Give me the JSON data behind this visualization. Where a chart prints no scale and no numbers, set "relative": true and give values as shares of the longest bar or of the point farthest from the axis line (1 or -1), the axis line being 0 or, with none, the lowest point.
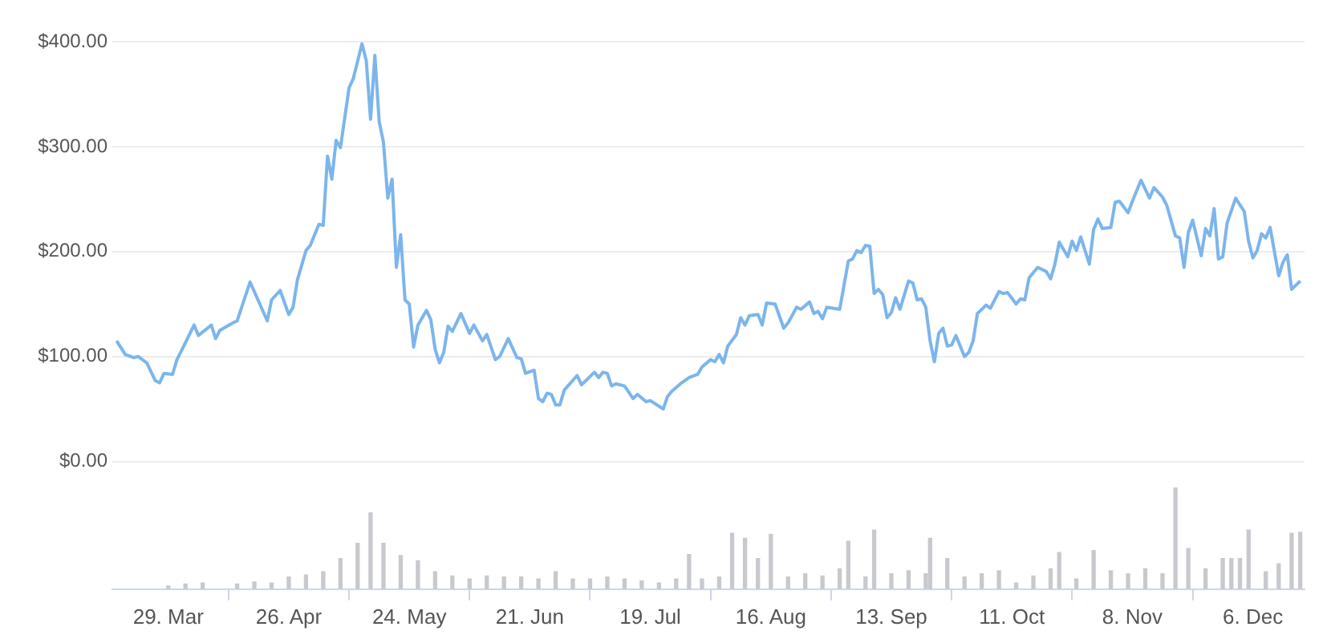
{
  "chart_data": [
    {
      "type": "line",
      "color": "#7cb5ec",
      "grid": "y",
      "tick_labels": "y",
      "xlim": [
        "--03-16",
        "--12-18"
      ],
      "ylim": [
        0,
        400
      ],
      "yticks": [
        {
          "value": 0,
          "label": "$0.00"
        },
        {
          "value": 100,
          "label": "$100.00"
        },
        {
          "value": 200,
          "label": "$200.00"
        },
        {
          "value": 300,
          "label": "$300.00"
        },
        {
          "value": 400,
          "label": "$400.00"
        }
      ],
      "x": [
        "--03-17",
        "--03-19",
        "--03-21",
        "--03-22",
        "--03-24",
        "--03-26",
        "--03-27",
        "--03-28",
        "--03-30",
        "--03-31",
        "--04-01",
        "--04-04",
        "--04-05",
        "--04-08",
        "--04-09",
        "--04-10",
        "--04-13",
        "--04-14",
        "--04-17",
        "--04-21",
        "--04-22",
        "--04-24",
        "--04-26",
        "--04-27",
        "--04-28",
        "--04-30",
        "--05-01",
        "--05-03",
        "--05-04",
        "--05-05",
        "--05-06",
        "--05-07",
        "--05-08",
        "--05-10",
        "--05-11",
        "--05-13",
        "--05-14",
        "--05-15",
        "--05-16",
        "--05-17",
        "--05-18",
        "--05-19",
        "--05-20",
        "--05-21",
        "--05-22",
        "--05-23",
        "--05-24",
        "--05-25",
        "--05-26",
        "--05-28",
        "--05-29",
        "--05-30",
        "--05-31",
        "--06-01",
        "--06-02",
        "--06-03",
        "--06-05",
        "--06-07",
        "--06-08",
        "--06-10",
        "--06-11",
        "--06-13",
        "--06-14",
        "--06-16",
        "--06-18",
        "--06-19",
        "--06-20",
        "--06-22",
        "--06-23",
        "--06-24",
        "--06-25",
        "--06-26",
        "--06-27",
        "--06-28",
        "--06-29",
        "--07-02",
        "--07-03",
        "--07-04",
        "--07-06",
        "--07-07",
        "--07-08",
        "--07-09",
        "--07-10",
        "--07-11",
        "--07-13",
        "--07-15",
        "--07-16",
        "--07-18",
        "--07-19",
        "--07-22",
        "--07-23",
        "--07-24",
        "--07-26",
        "--07-28",
        "--07-30",
        "--07-31",
        "--08-02",
        "--08-03",
        "--08-04",
        "--08-05",
        "--08-06",
        "--08-08",
        "--08-09",
        "--08-10",
        "--08-11",
        "--08-13",
        "--08-14",
        "--08-15",
        "--08-17",
        "--08-19",
        "--08-20",
        "--08-22",
        "--08-23",
        "--08-25",
        "--08-26",
        "--08-27",
        "--08-28",
        "--08-29",
        "--09-01",
        "--09-03",
        "--09-04",
        "--09-05",
        "--09-06",
        "--09-07",
        "--09-08",
        "--09-09",
        "--09-10",
        "--09-11",
        "--09-12",
        "--09-13",
        "--09-14",
        "--09-15",
        "--09-17",
        "--09-18",
        "--09-19",
        "--09-20",
        "--09-21",
        "--09-22",
        "--09-23",
        "--09-24",
        "--09-25",
        "--09-26",
        "--09-27",
        "--09-28",
        "--09-30",
        "--10-01",
        "--10-02",
        "--10-03",
        "--10-05",
        "--10-06",
        "--10-08",
        "--10-09",
        "--10-10",
        "--10-12",
        "--10-13",
        "--10-14",
        "--10-15",
        "--10-17",
        "--10-19",
        "--10-20",
        "--10-21",
        "--10-22",
        "--10-24",
        "--10-25",
        "--10-26",
        "--10-27",
        "--10-29",
        "--10-30",
        "--10-31",
        "--11-01",
        "--11-03",
        "--11-04",
        "--11-05",
        "--11-07",
        "--11-08",
        "--11-10",
        "--11-12",
        "--11-13",
        "--11-15",
        "--11-16",
        "--11-18",
        "--11-19",
        "--11-20",
        "--11-21",
        "--11-22",
        "--11-24",
        "--11-25",
        "--11-26",
        "--11-27",
        "--11-28",
        "--11-29",
        "--11-30",
        "--12-02",
        "--12-04",
        "--12-05",
        "--12-06",
        "--12-07",
        "--12-08",
        "--12-09",
        "--12-10",
        "--12-12",
        "--12-13",
        "--12-14",
        "--12-15",
        "--12-17"
      ],
      "values": [
        115,
        102,
        99,
        100,
        94,
        77,
        75,
        84,
        83,
        97,
        105,
        130,
        120,
        130,
        117,
        125,
        132,
        134,
        171,
        134,
        154,
        163,
        140,
        147,
        173,
        201,
        206,
        226,
        225,
        291,
        269,
        306,
        299,
        356,
        365,
        398,
        382,
        326,
        387,
        324,
        304,
        251,
        269,
        185,
        216,
        154,
        150,
        109,
        130,
        144,
        135,
        107,
        94,
        104,
        129,
        124,
        141,
        122,
        130,
        115,
        121,
        97,
        100,
        117,
        99,
        98,
        84,
        87,
        60,
        57,
        65,
        64,
        54,
        54,
        68,
        82,
        73,
        77,
        85,
        80,
        85,
        84,
        72,
        74,
        72,
        60,
        64,
        57,
        58,
        50,
        62,
        67,
        74,
        80,
        83,
        90,
        97,
        95,
        102,
        94,
        110,
        121,
        137,
        130,
        139,
        140,
        130,
        151,
        150,
        127,
        132,
        147,
        145,
        152,
        141,
        143,
        136,
        147,
        145,
        191,
        193,
        201,
        199,
        206,
        205,
        160,
        164,
        159,
        137,
        142,
        156,
        145,
        172,
        170,
        154,
        155,
        147,
        115,
        95,
        122,
        127,
        110,
        111,
        120,
        100,
        104,
        115,
        141,
        149,
        146,
        162,
        160,
        161,
        150,
        155,
        154,
        175,
        185,
        181,
        174,
        188,
        209,
        195,
        210,
        201,
        214,
        188,
        221,
        231,
        222,
        223,
        247,
        248,
        237,
        248,
        268,
        251,
        261,
        252,
        244,
        215,
        213,
        185,
        218,
        230,
        196,
        222,
        215,
        241,
        193,
        195,
        227,
        251,
        238,
        210,
        194,
        201,
        217,
        213,
        223,
        177,
        190,
        197,
        164,
        172
      ]
    },
    {
      "type": "bar",
      "relative": true,
      "color": "#c8c9cf",
      "tick_labels": "x",
      "xlim": [
        "--03-16",
        "--12-18"
      ],
      "xticks": [
        {
          "value": "--03-29",
          "label": "29. Mar"
        },
        {
          "value": "--04-26",
          "label": "26. Apr"
        },
        {
          "value": "--05-24",
          "label": "24. May"
        },
        {
          "value": "--06-21",
          "label": "21. Jun"
        },
        {
          "value": "--07-19",
          "label": "19. Jul"
        },
        {
          "value": "--08-16",
          "label": "16. Aug"
        },
        {
          "value": "--09-13",
          "label": "13. Sep"
        },
        {
          "value": "--10-11",
          "label": "11. Oct"
        },
        {
          "value": "--11-08",
          "label": "8. Nov"
        },
        {
          "value": "--12-06",
          "label": "6. Dec"
        }
      ],
      "x": [
        "--03-29",
        "--04-02",
        "--04-06",
        "--04-14",
        "--04-18",
        "--04-22",
        "--04-26",
        "--04-30",
        "--05-04",
        "--05-08",
        "--05-12",
        "--05-15",
        "--05-18",
        "--05-22",
        "--05-26",
        "--05-30",
        "--06-03",
        "--06-07",
        "--06-11",
        "--06-15",
        "--06-19",
        "--06-23",
        "--06-27",
        "--07-01",
        "--07-05",
        "--07-09",
        "--07-13",
        "--07-17",
        "--07-21",
        "--07-25",
        "--07-28",
        "--07-31",
        "--08-04",
        "--08-07",
        "--08-10",
        "--08-13",
        "--08-16",
        "--08-20",
        "--08-24",
        "--08-28",
        "--09-01",
        "--09-03",
        "--09-07",
        "--09-09",
        "--09-13",
        "--09-17",
        "--09-21",
        "--09-22",
        "--09-26",
        "--09-30",
        "--10-04",
        "--10-08",
        "--10-12",
        "--10-16",
        "--10-20",
        "--10-22",
        "--10-26",
        "--10-30",
        "--11-03",
        "--11-07",
        "--11-11",
        "--11-15",
        "--11-18",
        "--11-21",
        "--11-25",
        "--11-29",
        "--12-01",
        "--12-03",
        "--12-05",
        "--12-09",
        "--12-12",
        "--12-15",
        "--12-17"
      ],
      "values": [
        0.03,
        0.05,
        0.06,
        0.05,
        0.07,
        0.06,
        0.12,
        0.14,
        0.17,
        0.3,
        0.45,
        0.75,
        0.45,
        0.33,
        0.28,
        0.17,
        0.13,
        0.1,
        0.13,
        0.12,
        0.12,
        0.1,
        0.17,
        0.1,
        0.1,
        0.12,
        0.1,
        0.08,
        0.06,
        0.1,
        0.34,
        0.1,
        0.12,
        0.55,
        0.5,
        0.3,
        0.54,
        0.12,
        0.15,
        0.13,
        0.2,
        0.47,
        0.12,
        0.58,
        0.15,
        0.18,
        0.15,
        0.5,
        0.3,
        0.12,
        0.15,
        0.18,
        0.06,
        0.13,
        0.2,
        0.36,
        0.1,
        0.38,
        0.18,
        0.15,
        0.2,
        0.15,
        1.0,
        0.4,
        0.2,
        0.3,
        0.3,
        0.3,
        0.58,
        0.17,
        0.25,
        0.55,
        0.56
      ]
    }
  ]
}
